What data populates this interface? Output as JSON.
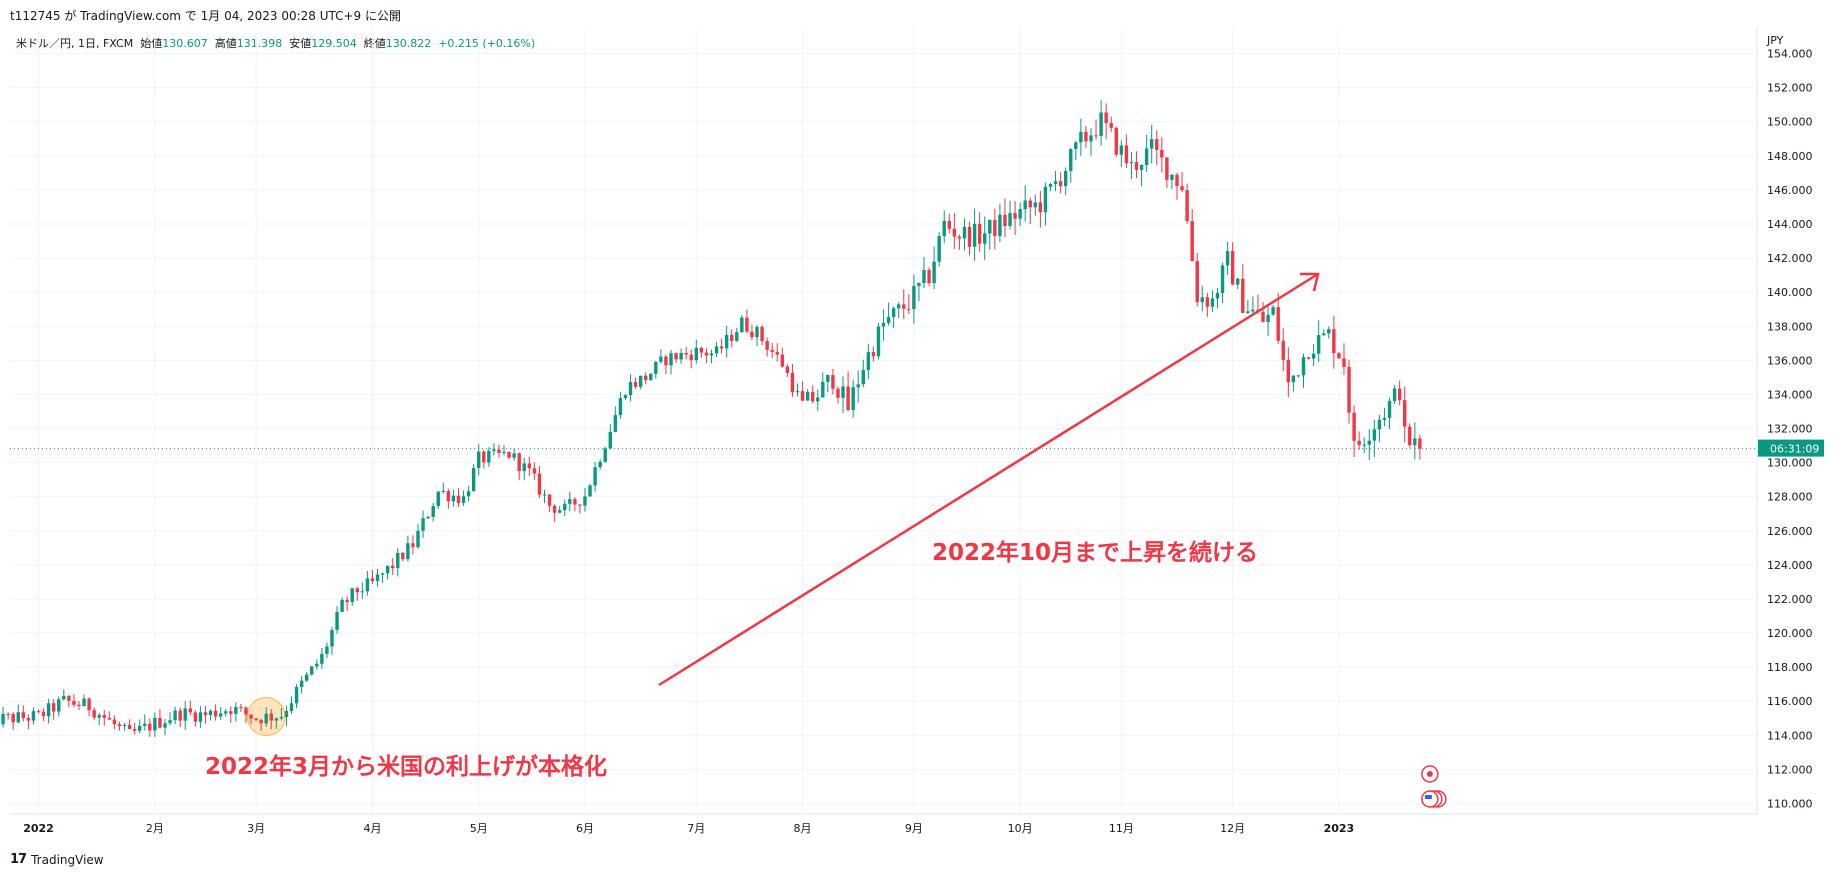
{
  "header": {
    "publish_line": "t112745 が TradingView.com で 1月 04, 2023 00:28 UTC+9 に公開"
  },
  "legend": {
    "symbol": "米ドル／円, 1日, FXCM",
    "open_label": "始値",
    "open": "130.607",
    "high_label": "高値",
    "high": "131.398",
    "low_label": "安値",
    "low": "129.504",
    "close_label": "終値",
    "close": "130.822",
    "change": "+0.215 (+0.16%)"
  },
  "annotations": {
    "note_march": "2022年3月から米国の利上げが本格化",
    "note_october": "2022年10月まで上昇を続ける"
  },
  "footer": {
    "brand": "TradingView"
  },
  "price_label": "06:31:09",
  "colors": {
    "up": "#089981",
    "down": "#f23645",
    "grid": "#f0f3fa",
    "text": "#131722"
  },
  "chart_data": {
    "type": "candlestick",
    "currency": "JPY",
    "y_range": [
      109.5,
      155.5
    ],
    "y_ticks": [
      110,
      112,
      114,
      116,
      118,
      120,
      122,
      124,
      126,
      128,
      130,
      132,
      134,
      136,
      138,
      140,
      142,
      144,
      146,
      148,
      150,
      152,
      154
    ],
    "x_labels": [
      "2022",
      "2月",
      "3月",
      "4月",
      "5月",
      "6月",
      "7月",
      "8月",
      "9月",
      "10月",
      "11月",
      "12月",
      "2023"
    ],
    "month_start_days": [
      0,
      23,
      43,
      66,
      87,
      108,
      130,
      151,
      173,
      194,
      214,
      236,
      257
    ],
    "last_price": 130.822,
    "close_path": [
      [
        -10,
        114.9
      ],
      [
        0,
        115.1
      ],
      [
        5,
        116.0
      ],
      [
        10,
        115.7
      ],
      [
        15,
        114.6
      ],
      [
        18,
        114.0
      ],
      [
        23,
        114.7
      ],
      [
        28,
        115.3
      ],
      [
        33,
        115.2
      ],
      [
        38,
        115.6
      ],
      [
        43,
        115.0
      ],
      [
        48,
        115.2
      ],
      [
        52,
        117.0
      ],
      [
        56,
        118.6
      ],
      [
        60,
        121.6
      ],
      [
        63,
        122.5
      ],
      [
        66,
        122.9
      ],
      [
        70,
        124.0
      ],
      [
        74,
        125.2
      ],
      [
        79,
        128.3
      ],
      [
        84,
        127.9
      ],
      [
        87,
        130.2
      ],
      [
        93,
        130.5
      ],
      [
        97,
        129.4
      ],
      [
        101,
        127.5
      ],
      [
        104,
        127.2
      ],
      [
        108,
        128.1
      ],
      [
        112,
        131.2
      ],
      [
        116,
        134.4
      ],
      [
        120,
        135.0
      ],
      [
        124,
        136.1
      ],
      [
        130,
        136.5
      ],
      [
        134,
        136.4
      ],
      [
        139,
        138.2
      ],
      [
        142,
        137.6
      ],
      [
        147,
        135.8
      ],
      [
        151,
        133.3
      ],
      [
        154,
        134.0
      ],
      [
        157,
        135.0
      ],
      [
        160,
        133.2
      ],
      [
        163,
        135.7
      ],
      [
        167,
        138.1
      ],
      [
        172,
        139.4
      ],
      [
        176,
        141.0
      ],
      [
        179,
        144.0
      ],
      [
        182,
        143.4
      ],
      [
        186,
        143.3
      ],
      [
        190,
        144.0
      ],
      [
        194,
        144.7
      ],
      [
        198,
        145.2
      ],
      [
        202,
        146.8
      ],
      [
        206,
        148.8
      ],
      [
        210,
        150.0
      ],
      [
        212,
        149.1
      ],
      [
        216,
        147.3
      ],
      [
        220,
        148.4
      ],
      [
        224,
        146.9
      ],
      [
        226,
        146.3
      ],
      [
        229,
        139.8
      ],
      [
        232,
        139.5
      ],
      [
        235,
        141.8
      ],
      [
        238,
        139.4
      ],
      [
        242,
        138.3
      ],
      [
        244,
        138.8
      ],
      [
        247,
        134.5
      ],
      [
        251,
        136.8
      ],
      [
        255,
        137.5
      ],
      [
        258,
        135.9
      ],
      [
        260,
        130.8
      ],
      [
        264,
        132.3
      ],
      [
        267,
        133.4
      ],
      [
        269,
        134.3
      ],
      [
        270,
        131.5
      ],
      [
        273,
        130.8
      ]
    ],
    "highlight_day": 45
  }
}
